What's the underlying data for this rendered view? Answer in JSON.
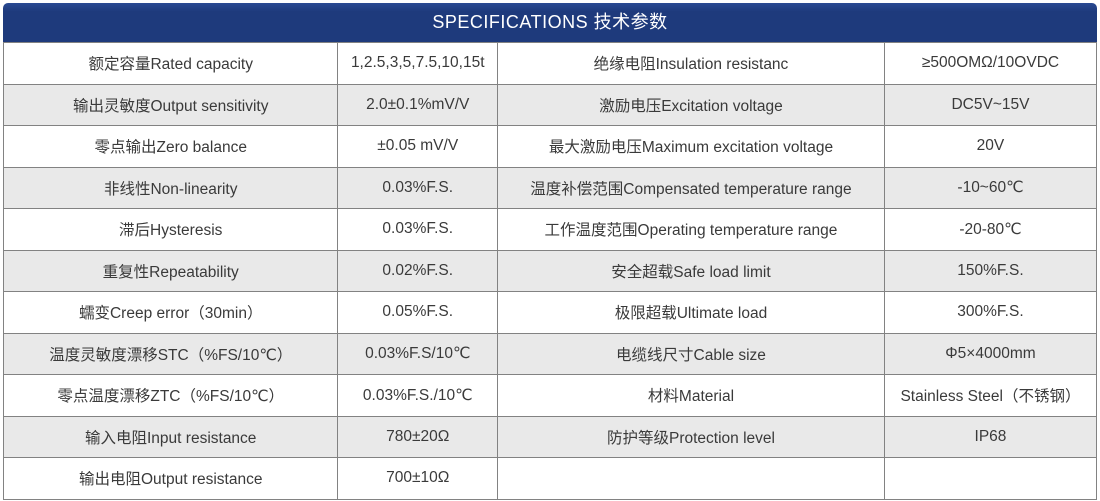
{
  "header": {
    "title": "SPECIFICATIONS 技术参数"
  },
  "colors": {
    "header_bg": "#1e3a7c",
    "header_text": "#ffffff",
    "row_bg": "#ffffff",
    "row_alt_bg": "#e9e9e9",
    "border": "#828282",
    "text": "#3a3a3a"
  },
  "table": {
    "columns": [
      "parameter_left",
      "value_left",
      "parameter_right",
      "value_right"
    ],
    "rows": [
      {
        "label_left": "额定容量Rated capacity",
        "value_left": "1,2.5,3,5,7.5,10,15t",
        "label_right": "绝缘电阻Insulation resistanc",
        "value_right": "≥500OMΩ/10OVDC"
      },
      {
        "label_left": "输出灵敏度Output sensitivity",
        "value_left": "2.0±0.1%mV/V",
        "label_right": "激励电压Excitation voltage",
        "value_right": "DC5V~15V"
      },
      {
        "label_left": "零点输出Zero balance",
        "value_left": "±0.05 mV/V",
        "label_right": "最大激励电压Maximum excitation voltage",
        "value_right": "20V"
      },
      {
        "label_left": "非线性Non-linearity",
        "value_left": "0.03%F.S.",
        "label_right": "温度补偿范围Compensated temperature range",
        "value_right": "-10~60℃"
      },
      {
        "label_left": "滞后Hysteresis",
        "value_left": "0.03%F.S.",
        "label_right": "工作温度范围Operating temperature range",
        "value_right": "-20-80℃"
      },
      {
        "label_left": "重复性Repeatability",
        "value_left": "0.02%F.S.",
        "label_right": "安全超载Safe load limit",
        "value_right": "150%F.S."
      },
      {
        "label_left": "蠕变Creep error（30min）",
        "value_left": "0.05%F.S.",
        "label_right": "极限超载Ultimate load",
        "value_right": "300%F.S."
      },
      {
        "label_left": "温度灵敏度漂移STC（%FS/10℃）",
        "value_left": "0.03%F.S/10℃",
        "label_right": "电缆线尺寸Cable size",
        "value_right": "Φ5×4000mm"
      },
      {
        "label_left": "零点温度漂移ZTC（%FS/10℃）",
        "value_left": "0.03%F.S./10℃",
        "label_right": "材料Material",
        "value_right": "Stainless Steel（不锈钢）"
      },
      {
        "label_left": "输入电阻Input resistance",
        "value_left": "780±20Ω",
        "label_right": "防护等级Protection level",
        "value_right": "IP68"
      },
      {
        "label_left": "输出电阻Output resistance",
        "value_left": "700±10Ω",
        "label_right": "",
        "value_right": ""
      }
    ]
  }
}
